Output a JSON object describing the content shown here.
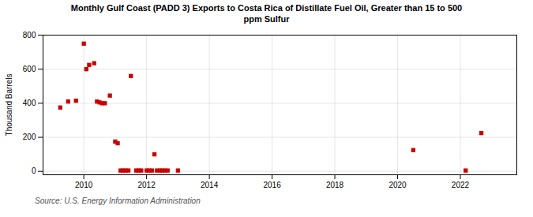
{
  "chart_data": {
    "type": "scatter",
    "title": "Monthly Gulf Coast (PADD 3) Exports to Costa Rica of Distillate Fuel Oil, Greater than 15 to 500\nppm Sulfur",
    "ylabel": "Thousand Barrels",
    "source": "Source: U.S. Energy Information Administration",
    "color": "#cc0000",
    "marker": "square",
    "grid": true,
    "xlim": [
      2008.7,
      2023.8
    ],
    "ylim": [
      -20,
      800
    ],
    "xticks": [
      2010,
      2012,
      2014,
      2016,
      2018,
      2020,
      2022
    ],
    "yticks": [
      0,
      200,
      400,
      600,
      800
    ],
    "x": [
      2009.25,
      2009.5,
      2009.75,
      2010.0,
      2010.08,
      2010.17,
      2010.33,
      2010.42,
      2010.5,
      2010.58,
      2010.67,
      2010.83,
      2011.0,
      2011.08,
      2011.17,
      2011.25,
      2011.33,
      2011.42,
      2011.5,
      2011.67,
      2011.75,
      2011.83,
      2012.0,
      2012.08,
      2012.17,
      2012.25,
      2012.33,
      2012.42,
      2012.5,
      2012.58,
      2012.67,
      2013.0,
      2020.5,
      2022.17,
      2022.67
    ],
    "values": [
      375,
      410,
      415,
      750,
      600,
      625,
      635,
      410,
      405,
      400,
      400,
      445,
      175,
      165,
      5,
      5,
      5,
      5,
      560,
      5,
      5,
      5,
      5,
      5,
      5,
      100,
      5,
      5,
      5,
      5,
      5,
      5,
      125,
      5,
      225
    ]
  }
}
